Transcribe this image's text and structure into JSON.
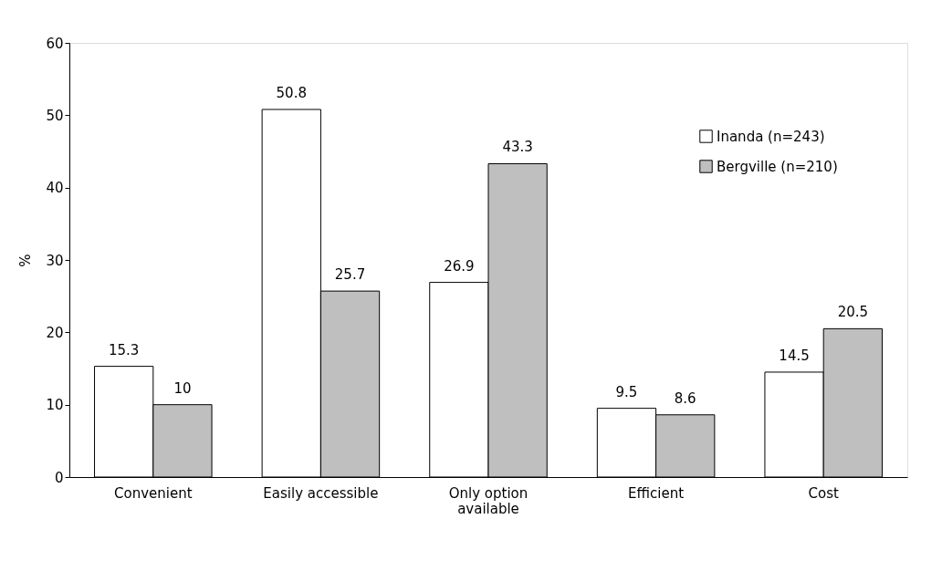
{
  "chart_data": {
    "type": "bar",
    "ylabel": "%",
    "categories": [
      "Convenient",
      "Easily accessible",
      "Only option available",
      "Efficient",
      "Cost"
    ],
    "series": [
      {
        "name": "Inanda (n=243)",
        "color": "#ffffff",
        "values": [
          15.3,
          50.8,
          26.9,
          9.5,
          14.5
        ]
      },
      {
        "name": "Bergville (n=210)",
        "color": "#bfbfbf",
        "values": [
          10,
          25.7,
          43.3,
          8.6,
          20.5
        ]
      }
    ],
    "ylim": [
      0,
      60
    ],
    "yticks": [
      0,
      10,
      20,
      30,
      40,
      50,
      60
    ],
    "grid": false,
    "legend": "top right",
    "data_labels": true
  }
}
